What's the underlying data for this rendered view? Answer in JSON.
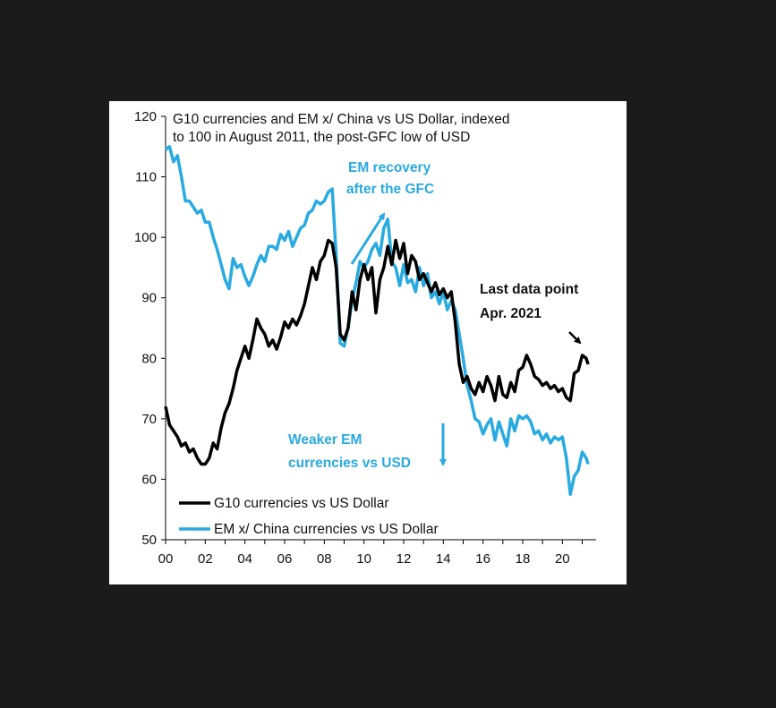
{
  "colors": {
    "background": "#1b1b1b",
    "panel": "#ffffff",
    "g10": "#000000",
    "em": "#29aae1",
    "axis": "#000000"
  },
  "chart_data": {
    "type": "line",
    "title": "G10 currencies and EM x/ China vs US Dollar, indexed to 100  in August 2011,  the post-GFC low of USD",
    "title_lines": [
      "G10 currencies and EM x/ China vs US Dollar, indexed",
      "to 100  in August 2011,  the post-GFC low of USD"
    ],
    "xlabel": "",
    "ylabel": "",
    "xlim": [
      2000,
      2021.7
    ],
    "ylim": [
      50,
      120
    ],
    "yticks": [
      "50",
      "60",
      "70",
      "80",
      "90",
      "100",
      "110",
      "120"
    ],
    "xticks": [
      "00",
      "02",
      "04",
      "06",
      "08",
      "10",
      "12",
      "14",
      "16",
      "18",
      "20"
    ],
    "grid": false,
    "legend_position": "bottom-left",
    "annotations": {
      "em_recovery": [
        "EM recovery",
        "after the GFC"
      ],
      "weaker_em": [
        "Weaker EM",
        "currencies vs USD"
      ],
      "last_point": [
        "Last data point",
        "Apr. 2021"
      ]
    },
    "series": [
      {
        "name": "G10 currencies vs US Dollar",
        "color": "#000000",
        "x": [
          2000.0,
          2000.2,
          2000.4,
          2000.6,
          2000.8,
          2001.0,
          2001.2,
          2001.4,
          2001.6,
          2001.8,
          2002.0,
          2002.2,
          2002.4,
          2002.6,
          2002.8,
          2003.0,
          2003.2,
          2003.4,
          2003.6,
          2003.8,
          2004.0,
          2004.2,
          2004.4,
          2004.6,
          2004.8,
          2005.0,
          2005.2,
          2005.4,
          2005.6,
          2005.8,
          2006.0,
          2006.2,
          2006.4,
          2006.6,
          2006.8,
          2007.0,
          2007.2,
          2007.4,
          2007.6,
          2007.8,
          2008.0,
          2008.2,
          2008.4,
          2008.6,
          2008.8,
          2009.0,
          2009.2,
          2009.4,
          2009.6,
          2009.8,
          2010.0,
          2010.2,
          2010.4,
          2010.6,
          2010.8,
          2011.0,
          2011.2,
          2011.4,
          2011.6,
          2011.8,
          2012.0,
          2012.2,
          2012.4,
          2012.6,
          2012.8,
          2013.0,
          2013.2,
          2013.4,
          2013.6,
          2013.8,
          2014.0,
          2014.2,
          2014.4,
          2014.6,
          2014.8,
          2015.0,
          2015.2,
          2015.4,
          2015.6,
          2015.8,
          2016.0,
          2016.2,
          2016.4,
          2016.6,
          2016.8,
          2017.0,
          2017.2,
          2017.4,
          2017.6,
          2017.8,
          2018.0,
          2018.2,
          2018.4,
          2018.6,
          2018.8,
          2019.0,
          2019.2,
          2019.4,
          2019.6,
          2019.8,
          2020.0,
          2020.2,
          2020.4,
          2020.6,
          2020.8,
          2021.0,
          2021.2,
          2021.3
        ],
        "values": [
          72,
          69,
          68,
          67,
          65.5,
          66,
          64.5,
          65,
          63.5,
          62.5,
          62.5,
          63.5,
          66,
          65,
          68.5,
          71,
          72.5,
          75,
          78,
          80,
          82,
          80,
          83,
          86.5,
          85,
          84,
          82,
          83,
          81.5,
          83.5,
          86,
          85,
          86.5,
          85.5,
          87,
          89,
          92,
          95,
          93,
          96,
          97,
          99.5,
          99,
          95,
          84,
          83,
          85,
          91,
          88,
          93,
          95.5,
          93,
          95,
          87.5,
          93,
          95,
          98.5,
          95.5,
          99.5,
          96.5,
          99,
          94,
          97,
          96,
          93,
          94,
          92.5,
          91,
          92.5,
          90.5,
          91.5,
          90,
          91,
          86,
          79,
          76,
          77,
          75,
          74,
          76,
          74.5,
          77,
          75.5,
          73,
          77,
          74,
          73.5,
          76,
          74.5,
          78,
          78.5,
          80.5,
          79,
          77,
          76.5,
          75.5,
          76,
          75,
          75.5,
          74.5,
          75,
          73.5,
          73,
          77.5,
          78,
          80.5,
          80,
          79
        ]
      },
      {
        "name": "EM x/ China currencies vs US Dollar",
        "color": "#29aae1",
        "x": [
          2000.0,
          2000.2,
          2000.4,
          2000.6,
          2000.8,
          2001.0,
          2001.2,
          2001.4,
          2001.6,
          2001.8,
          2002.0,
          2002.2,
          2002.4,
          2002.6,
          2002.8,
          2003.0,
          2003.2,
          2003.4,
          2003.6,
          2003.8,
          2004.0,
          2004.2,
          2004.4,
          2004.6,
          2004.8,
          2005.0,
          2005.2,
          2005.4,
          2005.6,
          2005.8,
          2006.0,
          2006.2,
          2006.4,
          2006.6,
          2006.8,
          2007.0,
          2007.2,
          2007.4,
          2007.6,
          2007.8,
          2008.0,
          2008.2,
          2008.4,
          2008.6,
          2008.8,
          2009.0,
          2009.2,
          2009.4,
          2009.6,
          2009.8,
          2010.0,
          2010.2,
          2010.4,
          2010.6,
          2010.8,
          2011.0,
          2011.2,
          2011.4,
          2011.6,
          2011.8,
          2012.0,
          2012.2,
          2012.4,
          2012.6,
          2012.8,
          2013.0,
          2013.2,
          2013.4,
          2013.6,
          2013.8,
          2014.0,
          2014.2,
          2014.4,
          2014.6,
          2014.8,
          2015.0,
          2015.2,
          2015.4,
          2015.6,
          2015.8,
          2016.0,
          2016.2,
          2016.4,
          2016.6,
          2016.8,
          2017.0,
          2017.2,
          2017.4,
          2017.6,
          2017.8,
          2018.0,
          2018.2,
          2018.4,
          2018.6,
          2018.8,
          2019.0,
          2019.2,
          2019.4,
          2019.6,
          2019.8,
          2020.0,
          2020.2,
          2020.4,
          2020.6,
          2020.8,
          2021.0,
          2021.2,
          2021.3
        ],
        "values": [
          114.5,
          115,
          112.5,
          113.5,
          110,
          106,
          106,
          105,
          104,
          104.5,
          102.5,
          102.5,
          100,
          98,
          95.5,
          93,
          91.5,
          96.5,
          95,
          95.5,
          93.5,
          92,
          93.5,
          95.5,
          97,
          96,
          98.5,
          98.5,
          98,
          100.5,
          99.5,
          101,
          98.5,
          100,
          101.5,
          102,
          104,
          104.5,
          106,
          105.5,
          106,
          107.5,
          108,
          97,
          82.5,
          82,
          85,
          89.5,
          92.5,
          96,
          95,
          96,
          98,
          99,
          97,
          101.5,
          103,
          96,
          95,
          92,
          95.5,
          92.5,
          93,
          91,
          95,
          92,
          94,
          90,
          91,
          89,
          91,
          88,
          89.5,
          88,
          84,
          80,
          75.5,
          73,
          70,
          69.5,
          67.5,
          69,
          70,
          66.5,
          69.5,
          67.5,
          65.5,
          70,
          68,
          70.5,
          70,
          70.5,
          69.5,
          67.5,
          68,
          66.5,
          67.5,
          66,
          67,
          66.5,
          67,
          63.5,
          57.5,
          60.5,
          61.5,
          64.5,
          63.5,
          62.5
        ]
      }
    ]
  }
}
